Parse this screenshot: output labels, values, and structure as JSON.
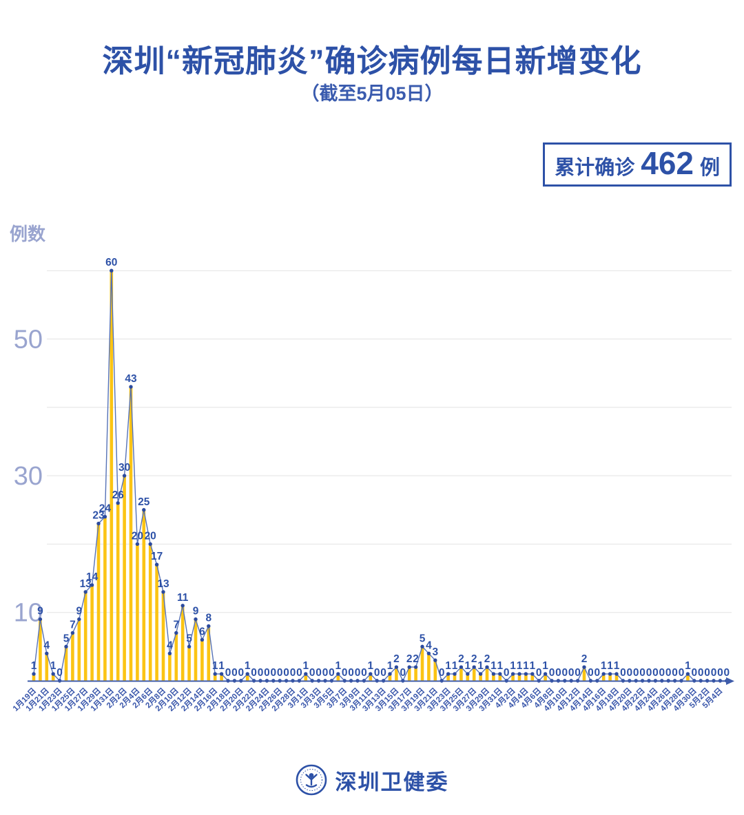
{
  "header": {
    "title": "深圳“新冠肺炎”确诊病例每日新增变化",
    "subtitle": "（截至5月05日）"
  },
  "badge": {
    "label": "累计确诊",
    "value": "462",
    "unit": "例"
  },
  "footer": {
    "org": "深圳卫健委",
    "logo_icon": "shenzhen-health-commission-emblem-icon"
  },
  "chart_data": {
    "type": "bar+line",
    "title": "深圳“新冠肺炎”确诊病例每日新增变化",
    "subtitle": "（截至5月05日）",
    "ylabel": "例数",
    "cumulative_total": 462,
    "ylim": [
      0,
      62
    ],
    "y_ticks": [
      10,
      30,
      50
    ],
    "grid_levels": [
      10,
      20,
      30,
      40,
      50,
      60
    ],
    "grid": true,
    "legend_position": "none",
    "x_label_every": 2,
    "x": [
      "1月19日",
      "1月20日",
      "1月21日",
      "1月22日",
      "1月23日",
      "1月24日",
      "1月25日",
      "1月26日",
      "1月27日",
      "1月28日",
      "1月29日",
      "1月30日",
      "1月31日",
      "2月1日",
      "2月2日",
      "2月3日",
      "2月4日",
      "2月5日",
      "2月6日",
      "2月7日",
      "2月8日",
      "2月9日",
      "2月10日",
      "2月11日",
      "2月12日",
      "2月13日",
      "2月14日",
      "2月15日",
      "2月16日",
      "2月17日",
      "2月18日",
      "2月19日",
      "2月20日",
      "2月21日",
      "2月22日",
      "2月23日",
      "2月24日",
      "2月25日",
      "2月26日",
      "2月27日",
      "2月28日",
      "2月29日",
      "3月1日",
      "3月2日",
      "3月3日",
      "3月4日",
      "3月5日",
      "3月6日",
      "3月7日",
      "3月8日",
      "3月9日",
      "3月10日",
      "3月11日",
      "3月12日",
      "3月13日",
      "3月14日",
      "3月15日",
      "3月16日",
      "3月17日",
      "3月18日",
      "3月19日",
      "3月20日",
      "3月21日",
      "3月22日",
      "3月23日",
      "3月24日",
      "3月25日",
      "3月26日",
      "3月27日",
      "3月28日",
      "3月29日",
      "3月30日",
      "3月31日",
      "4月1日",
      "4月2日",
      "4月3日",
      "4月4日",
      "4月5日",
      "4月6日",
      "4月7日",
      "4月8日",
      "4月9日",
      "4月10日",
      "4月11日",
      "4月12日",
      "4月13日",
      "4月14日",
      "4月15日",
      "4月16日",
      "4月17日",
      "4月18日",
      "4月19日",
      "4月20日",
      "4月21日",
      "4月22日",
      "4月23日",
      "4月24日",
      "4月25日",
      "4月26日",
      "4月27日",
      "4月28日",
      "4月29日",
      "4月30日",
      "5月1日",
      "5月2日",
      "5月3日",
      "5月4日",
      "5月5日"
    ],
    "values": [
      1,
      9,
      4,
      1,
      0,
      5,
      7,
      9,
      13,
      14,
      23,
      24,
      60,
      26,
      30,
      43,
      20,
      25,
      20,
      17,
      13,
      4,
      7,
      11,
      5,
      9,
      6,
      8,
      1,
      1,
      0,
      0,
      0,
      1,
      0,
      0,
      0,
      0,
      0,
      0,
      0,
      0,
      1,
      0,
      0,
      0,
      0,
      1,
      0,
      0,
      0,
      0,
      1,
      0,
      0,
      1,
      2,
      0,
      2,
      2,
      5,
      4,
      3,
      0,
      1,
      1,
      2,
      1,
      2,
      1,
      2,
      1,
      1,
      0,
      1,
      1,
      1,
      1,
      0,
      1,
      0,
      0,
      0,
      0,
      0,
      2,
      0,
      0,
      1,
      1,
      1,
      0,
      0,
      0,
      0,
      0,
      0,
      0,
      0,
      0,
      0,
      1,
      0,
      0,
      0,
      0,
      0,
      0
    ],
    "colors": {
      "primary_blue": "#2d51a7",
      "axis_blue": "#3f5caa",
      "xlabel_blue": "#3a57ab",
      "light_periwinkle": "#99a4cf",
      "bar_gold": "#fbc414",
      "marker_blue": "#2b4a9e",
      "line_blue": "#5672b6",
      "grid_gray": "#e3e3e3"
    }
  }
}
